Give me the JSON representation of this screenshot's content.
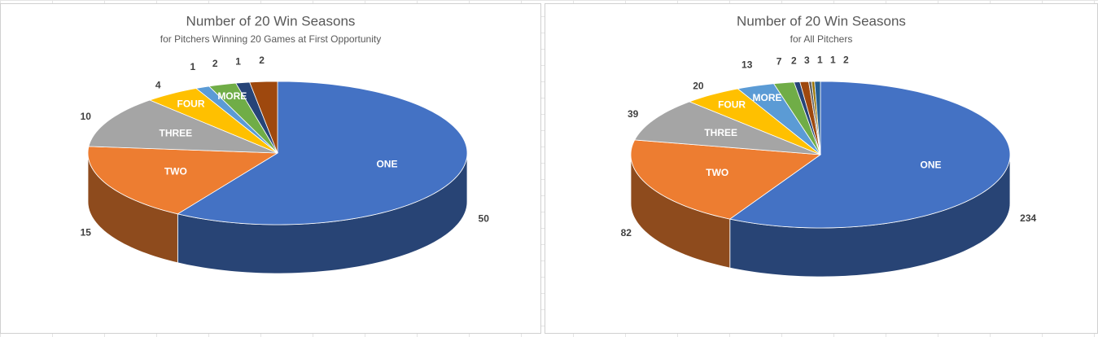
{
  "chart_data": [
    {
      "type": "pie3d",
      "title": "Number of 20 Win Seasons",
      "subtitle": "for Pitchers Winning 20 Games at First Opportunity",
      "categories": [
        "ONE",
        "TWO",
        "THREE",
        "FOUR",
        null,
        "MORE",
        null,
        null
      ],
      "values": [
        50,
        15,
        10,
        4,
        1,
        2,
        1,
        2
      ],
      "colors": [
        "#4472c4",
        "#ed7d31",
        "#a5a5a5",
        "#ffc000",
        "#5b9bd5",
        "#70ad47",
        "#264478",
        "#9e480e"
      ]
    },
    {
      "type": "pie3d",
      "title": "Number of 20 Win Seasons",
      "subtitle": "for All Pitchers",
      "categories": [
        "ONE",
        "TWO",
        "THREE",
        "FOUR",
        "MORE",
        null,
        null,
        null,
        null,
        null,
        null
      ],
      "values": [
        234,
        82,
        39,
        20,
        13,
        7,
        2,
        3,
        1,
        1,
        2
      ],
      "colors": [
        "#4472c4",
        "#ed7d31",
        "#a5a5a5",
        "#ffc000",
        "#5b9bd5",
        "#70ad47",
        "#264478",
        "#9e480e",
        "#636363",
        "#997300",
        "#255e91"
      ]
    }
  ]
}
